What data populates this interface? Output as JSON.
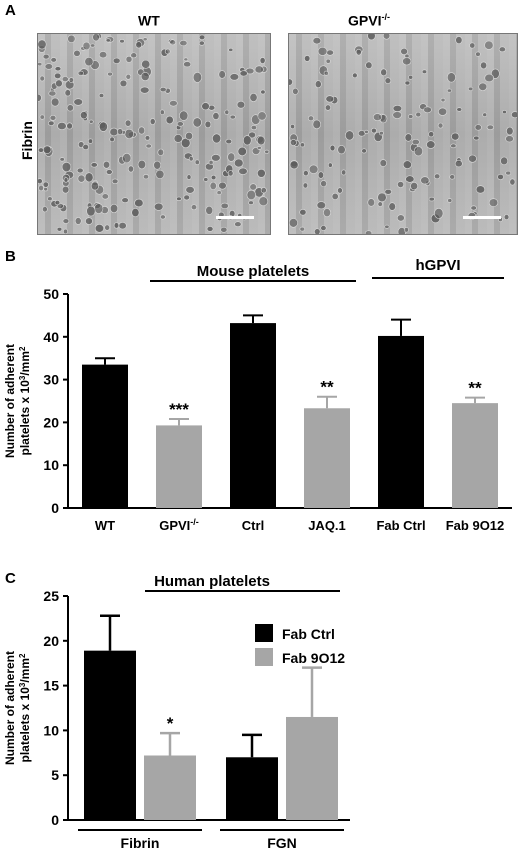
{
  "panel_a": {
    "letter": "A",
    "row_label": "Fibrin",
    "images": [
      {
        "title": "WT",
        "sup": ""
      },
      {
        "title": "GPVI",
        "sup": "-/-"
      }
    ]
  },
  "panel_b": {
    "letter": "B"
  },
  "panel_c": {
    "letter": "C"
  },
  "chart_data": [
    {
      "type": "bar",
      "categories": [
        "WT",
        "GPVI-/-",
        "Ctrl",
        "JAQ.1",
        "Fab Ctrl",
        "Fab 9O12"
      ],
      "category_labels": [
        {
          "text": "WT",
          "sup": ""
        },
        {
          "text": "GPVI",
          "sup": "-/-"
        },
        {
          "text": "Ctrl",
          "sup": ""
        },
        {
          "text": "JAQ.1",
          "sup": ""
        },
        {
          "text": "Fab Ctrl",
          "sup": ""
        },
        {
          "text": "Fab 9O12",
          "sup": ""
        }
      ],
      "values": [
        33.5,
        19.3,
        43.2,
        23.3,
        40.2,
        24.5
      ],
      "errors": [
        1.5,
        1.5,
        1.8,
        2.7,
        3.8,
        1.3
      ],
      "colors": [
        "#000000",
        "#a6a6a6",
        "#000000",
        "#a6a6a6",
        "#000000",
        "#a6a6a6"
      ],
      "significance": [
        "",
        "***",
        "",
        "**",
        "",
        "**"
      ],
      "ylabel_line1": "Number of adherent",
      "ylabel_line2": "platelets x 10",
      "ylabel_sup": "3",
      "ylabel_unit": "/mm",
      "ylabel_sup2": "2",
      "ylim": [
        0,
        50
      ],
      "yticks": [
        0,
        10,
        20,
        30,
        40,
        50
      ],
      "group_labels": [
        {
          "text": "Mouse platelets",
          "span": [
            1,
            3
          ],
          "bar_over": "top"
        },
        {
          "text": "hGPVI",
          "span": [
            4,
            5
          ],
          "bar_over": "bottom"
        }
      ]
    },
    {
      "type": "bar",
      "groups": [
        "Fibrin",
        "FGN"
      ],
      "series": [
        {
          "name": "Fab Ctrl",
          "color": "#000000",
          "values": [
            18.9,
            7.0
          ],
          "errors": [
            3.9,
            2.5
          ]
        },
        {
          "name": "Fab 9O12",
          "color": "#a6a6a6",
          "values": [
            7.2,
            11.5
          ],
          "errors": [
            2.5,
            5.5
          ]
        }
      ],
      "significance": [
        [
          "",
          "*"
        ],
        [
          "",
          ""
        ]
      ],
      "ylabel_line1": "Number of adherent",
      "ylabel_line2": "platelets x 10",
      "ylabel_sup": "3",
      "ylabel_unit": "/mm",
      "ylabel_sup2": "2",
      "ylim": [
        0,
        25
      ],
      "yticks": [
        0,
        5,
        10,
        15,
        20,
        25
      ],
      "title": "Human platelets",
      "legend_position": "top-right"
    }
  ]
}
